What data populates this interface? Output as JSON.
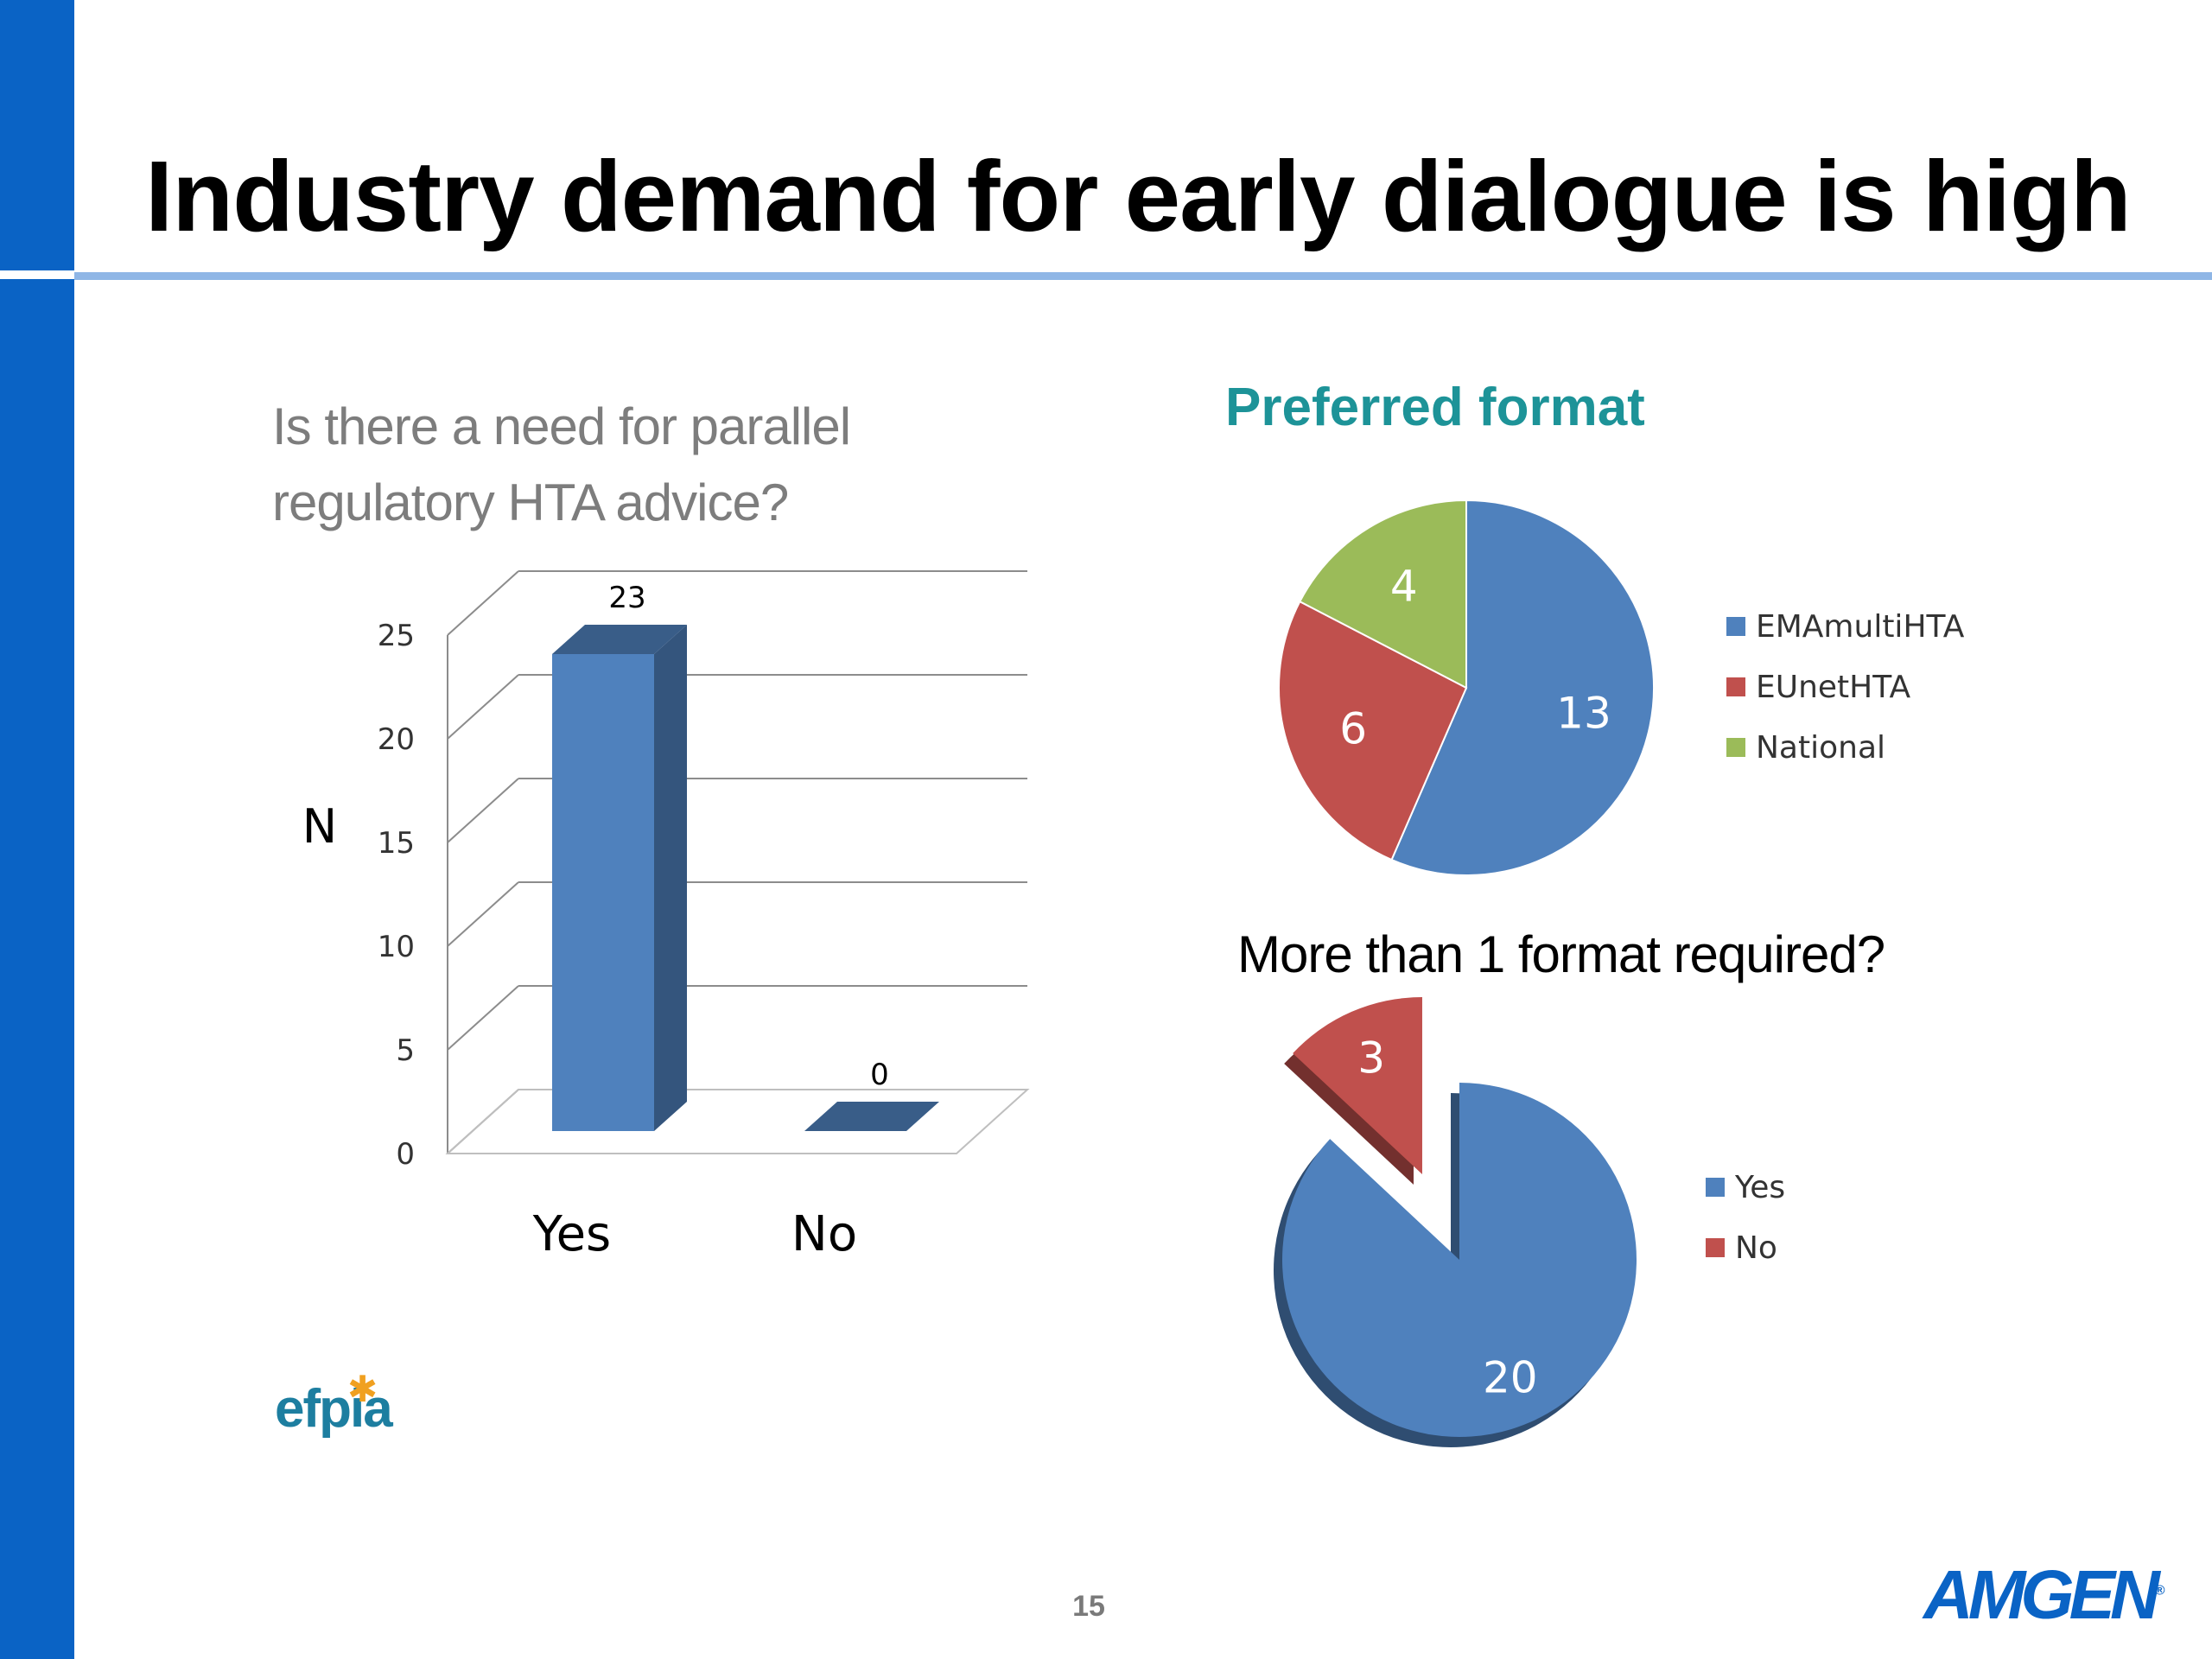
{
  "slide": {
    "title": "Industry demand for early dialogue is high",
    "page_number": "15",
    "logos": {
      "left": "efpia",
      "right": "AMGEN"
    }
  },
  "bar_question": "Is there a need for parallel regulatory HTA advice?",
  "pie1_title": "Preferred format",
  "pie2_title": "More than 1 format required?",
  "colors": {
    "blue": "#4f81bd",
    "red": "#c0504d",
    "green": "#9bbb59",
    "accent": "#0a63c5",
    "teal": "#1d9398"
  },
  "chart_data": [
    {
      "type": "bar",
      "categories": [
        "Yes",
        "No"
      ],
      "values": [
        23,
        0
      ],
      "data_labels": [
        "23",
        "0"
      ],
      "ylabel": "N",
      "ylim": [
        0,
        25
      ],
      "yticks": [
        0,
        5,
        10,
        15,
        20,
        25
      ],
      "grid": true
    },
    {
      "type": "pie",
      "title": "Preferred format",
      "categories": [
        "EMAmultiHTA",
        "EUnetHTA",
        "National"
      ],
      "values": [
        13,
        6,
        4
      ],
      "legend": "right"
    },
    {
      "type": "pie",
      "title": "More than 1 format required?",
      "categories": [
        "Yes",
        "No"
      ],
      "values": [
        20,
        3
      ],
      "exploded": "No",
      "legend": "right"
    }
  ]
}
